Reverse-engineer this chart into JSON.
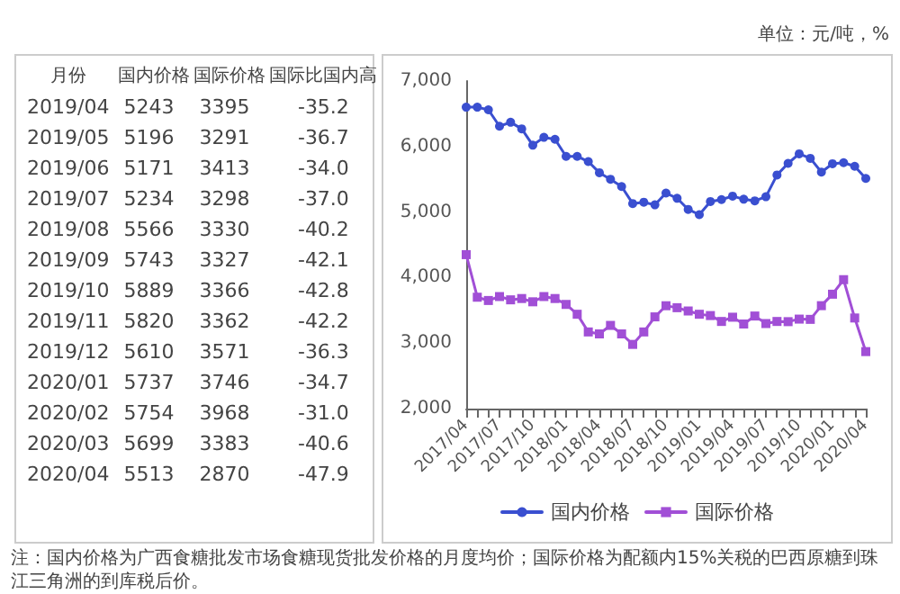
{
  "chart_data": [
    {
      "type": "other",
      "xlabel": "月份",
      "categories": [
        "2019/04",
        "2019/05",
        "2019/06",
        "2019/07",
        "2019/08",
        "2019/09",
        "2019/10",
        "2019/11",
        "2019/12",
        "2020/01",
        "2020/02",
        "2020/03",
        "2020/04"
      ],
      "data_labels": true,
      "series": [
        {
          "name": "国内价格",
          "values": [
            5243,
            5196,
            5171,
            5234,
            5566,
            5743,
            5889,
            5820,
            5610,
            5737,
            5754,
            5699,
            5513
          ]
        },
        {
          "name": "国际价格",
          "values": [
            3395,
            3291,
            3413,
            3298,
            3330,
            3327,
            3366,
            3362,
            3571,
            3746,
            3968,
            3383,
            2870
          ]
        },
        {
          "name": "国际比国内高",
          "values": [
            -35.2,
            -36.7,
            -34.0,
            -37.0,
            -40.2,
            -42.1,
            -42.8,
            -42.2,
            -36.3,
            -34.7,
            -31.0,
            -40.6,
            -47.9
          ],
          "value_labels": [
            "-35.2",
            "-36.7",
            "-34.0",
            "-37.0",
            "-40.2",
            "-42.1",
            "-42.8",
            "-42.2",
            "-36.3",
            "-34.7",
            "-31.0",
            "-40.6",
            "-47.9"
          ]
        }
      ]
    },
    {
      "type": "line",
      "subtitle": "单位：元/吨，%",
      "annotations": [
        "注：国内价格为广西食糖批发市场食糖现货批发价格的月度均价；国际价格为配额内15%关税的巴西原糖到珠江三角洲的到库税后价。"
      ],
      "categories": [
        "2017/04",
        null,
        null,
        "2017/07",
        null,
        null,
        "2017/10",
        null,
        null,
        "2018/01",
        null,
        null,
        "2018/04",
        null,
        null,
        "2018/07",
        null,
        null,
        "2018/10",
        null,
        null,
        "2019/01",
        null,
        null,
        "2019/04",
        null,
        null,
        "2019/07",
        null,
        null,
        "2019/10",
        null,
        null,
        "2020/01",
        null,
        null,
        "2020/04"
      ],
      "ylim": [
        2000,
        7000
      ],
      "yticks": [
        {
          "value": 2000,
          "label": "2,000"
        },
        {
          "value": 3000,
          "label": "3,000"
        },
        {
          "value": 4000,
          "label": "4,000"
        },
        {
          "value": 5000,
          "label": "5,000"
        },
        {
          "value": 6000,
          "label": "6,000"
        },
        {
          "value": 7000,
          "label": "7,000"
        }
      ],
      "grid": false,
      "legend": "bottom",
      "series": [
        {
          "name": "国内价格",
          "color": "#3a4fd0",
          "marker": "circle",
          "values": [
            6600,
            6600,
            6560,
            6310,
            6370,
            6270,
            6020,
            6140,
            6110,
            5850,
            5850,
            5770,
            5600,
            5500,
            5390,
            5130,
            5150,
            5110,
            5290,
            5210,
            5040,
            4960,
            5160,
            5190,
            5243,
            5196,
            5171,
            5234,
            5566,
            5743,
            5889,
            5820,
            5610,
            5737,
            5754,
            5699,
            5513
          ]
        },
        {
          "name": "国际价格",
          "color": "#a14fd6",
          "marker": "square",
          "values": [
            4350,
            3700,
            3650,
            3710,
            3660,
            3680,
            3630,
            3710,
            3680,
            3590,
            3440,
            3170,
            3140,
            3270,
            3140,
            2980,
            3170,
            3400,
            3570,
            3540,
            3490,
            3440,
            3420,
            3330,
            3395,
            3291,
            3413,
            3298,
            3330,
            3327,
            3366,
            3362,
            3571,
            3746,
            3968,
            3383,
            2870
          ]
        }
      ]
    }
  ]
}
